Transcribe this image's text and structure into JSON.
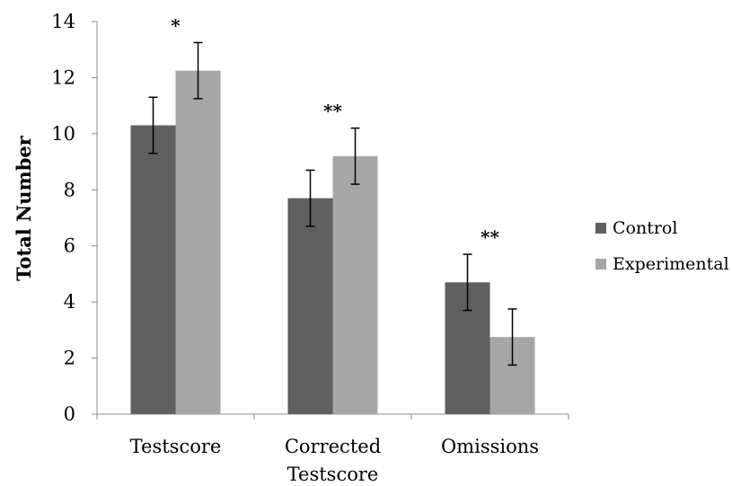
{
  "chart_data": {
    "type": "bar",
    "ylabel": "Total Number",
    "xlabel": "",
    "ylim": [
      0,
      14
    ],
    "yticks": [
      "0",
      "2",
      "4",
      "6",
      "8",
      "10",
      "12",
      "14"
    ],
    "categories": [
      [
        "Testscore"
      ],
      [
        "Corrected",
        "Testscore"
      ],
      [
        "Omissions"
      ]
    ],
    "series": [
      {
        "name": "Control",
        "color": "#5f5f5f",
        "values": [
          10.3,
          7.7,
          4.7
        ],
        "errors": [
          1.0,
          1.0,
          1.0
        ]
      },
      {
        "name": "Experimental",
        "color": "#a6a6a6",
        "values": [
          12.25,
          9.2,
          2.75
        ],
        "errors": [
          1.0,
          1.0,
          1.0
        ]
      }
    ],
    "significance": [
      "*",
      "**",
      "**"
    ],
    "legend_position": "right",
    "grid": false
  }
}
